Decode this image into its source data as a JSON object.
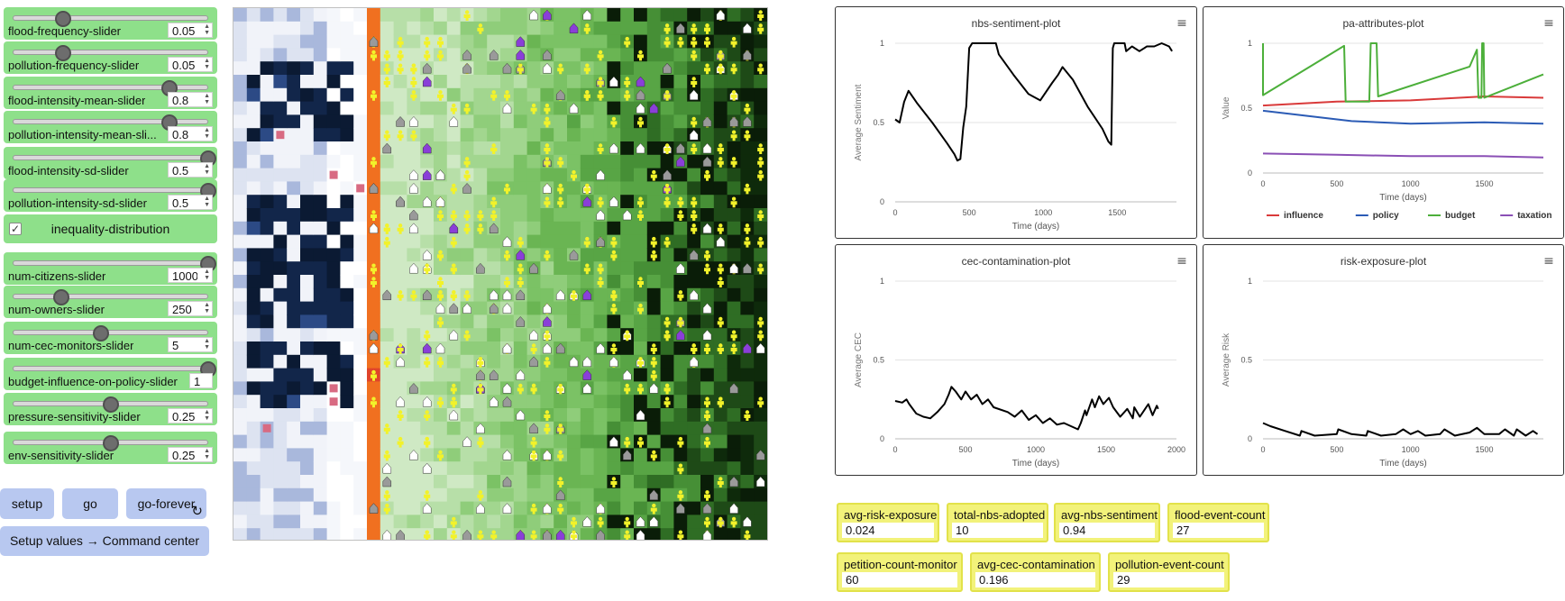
{
  "sliders": [
    {
      "name": "flood-frequency-slider",
      "label": "flood-frequency-slider",
      "value": "0.05",
      "fraction": 0.26
    },
    {
      "name": "pollution-frequency-slider",
      "label": "pollution-frequency-slider",
      "value": "0.05",
      "fraction": 0.26
    },
    {
      "name": "flood-intensity-mean-slider",
      "label": "flood-intensity-mean-slider",
      "value": "0.8",
      "fraction": 0.8
    },
    {
      "name": "pollution-intensity-mean-slider",
      "label": "pollution-intensity-mean-sli...",
      "value": "0.8",
      "fraction": 0.8
    },
    {
      "name": "flood-intensity-sd-slider",
      "label": "flood-intensity-sd-slider",
      "value": "0.5",
      "fraction": 1.0
    },
    {
      "name": "pollution-intensity-sd-slider",
      "label": "pollution-intensity-sd-slider",
      "value": "0.5",
      "fraction": 1.0
    },
    {
      "name": "num-citizens-slider",
      "label": "num-citizens-slider",
      "value": "1000",
      "fraction": 1.0
    },
    {
      "name": "num-owners-slider",
      "label": "num-owners-slider",
      "value": "250",
      "fraction": 0.25
    },
    {
      "name": "num-cec-monitors-slider",
      "label": "num-cec-monitors-slider",
      "value": "5",
      "fraction": 0.45
    },
    {
      "name": "budget-influence-on-policy-slider",
      "label": "budget-influence-on-policy-slider",
      "value": "1",
      "fraction": 1.0
    },
    {
      "name": "pressure-sensitivity-slider",
      "label": "pressure-sensitivity-slider",
      "value": "0.25",
      "fraction": 0.5
    },
    {
      "name": "env-sensitivity-slider",
      "label": "env-sensitivity-slider",
      "value": "0.25",
      "fraction": 0.5
    }
  ],
  "switch": {
    "label": "inequality-distribution",
    "checked": true,
    "check_glyph": "✓"
  },
  "buttons": {
    "setup": "setup",
    "go": "go",
    "go_forever": "go-forever",
    "go_forever_icon": "↻",
    "setup_values": "Setup values → Command center"
  },
  "plots": [
    {
      "name": "nbs-sentiment-plot",
      "title": "nbs-sentiment-plot",
      "menu_icon": "≡",
      "xlabel": "Time (days)",
      "ylabel": "Average Sentiment",
      "xlim": [
        0,
        1900
      ],
      "ylim": [
        0,
        1
      ],
      "xticks": [
        0,
        500,
        1000,
        1500
      ],
      "yticks": [
        0,
        0.5,
        1
      ],
      "series": [
        {
          "color": "#000000",
          "width": 2,
          "points": [
            [
              0,
              0.52
            ],
            [
              30,
              0.5
            ],
            [
              60,
              0.63
            ],
            [
              90,
              0.7
            ],
            [
              150,
              0.62
            ],
            [
              250,
              0.5
            ],
            [
              350,
              0.37
            ],
            [
              400,
              0.3
            ],
            [
              420,
              0.26
            ],
            [
              440,
              0.27
            ],
            [
              460,
              0.47
            ],
            [
              480,
              0.6
            ],
            [
              500,
              0.97
            ],
            [
              520,
              1
            ],
            [
              680,
              1
            ],
            [
              700,
              0.93
            ],
            [
              800,
              0.8
            ],
            [
              900,
              0.68
            ],
            [
              980,
              0.64
            ],
            [
              1060,
              0.75
            ],
            [
              1100,
              0.8
            ],
            [
              1130,
              0.85
            ],
            [
              1200,
              0.77
            ],
            [
              1300,
              0.6
            ],
            [
              1400,
              0.46
            ],
            [
              1440,
              0.38
            ],
            [
              1460,
              0.36
            ],
            [
              1470,
              0.97
            ],
            [
              1480,
              1
            ],
            [
              1550,
              1
            ],
            [
              1560,
              0.95
            ],
            [
              1600,
              0.98
            ],
            [
              1650,
              0.95
            ],
            [
              1700,
              0.98
            ],
            [
              1750,
              0.98
            ],
            [
              1800,
              1
            ],
            [
              1850,
              0.98
            ],
            [
              1870,
              0.95
            ]
          ]
        }
      ]
    },
    {
      "name": "pa-attributes-plot",
      "title": "pa-attributes-plot",
      "menu_icon": "≡",
      "xlabel": "Time (days)",
      "ylabel": "Value",
      "xlim": [
        0,
        1900
      ],
      "ylim": [
        0,
        1
      ],
      "xticks": [
        0,
        500,
        1000,
        1500
      ],
      "yticks": [
        0,
        0.5,
        1
      ],
      "legend": [
        {
          "label": "influence",
          "color": "#d93a3a"
        },
        {
          "label": "policy",
          "color": "#2b5bb5"
        },
        {
          "label": "budget",
          "color": "#4caf3a"
        },
        {
          "label": "taxation",
          "color": "#8a4fb5"
        }
      ],
      "series": [
        {
          "color": "#d93a3a",
          "width": 2,
          "points": [
            [
              0,
              0.52
            ],
            [
              500,
              0.55
            ],
            [
              1000,
              0.56
            ],
            [
              1500,
              0.59
            ],
            [
              1900,
              0.58
            ]
          ]
        },
        {
          "color": "#2b5bb5",
          "width": 2,
          "points": [
            [
              0,
              0.48
            ],
            [
              300,
              0.44
            ],
            [
              600,
              0.4
            ],
            [
              1000,
              0.38
            ],
            [
              1500,
              0.39
            ],
            [
              1900,
              0.38
            ]
          ]
        },
        {
          "color": "#4caf3a",
          "width": 2,
          "points": [
            [
              0,
              1
            ],
            [
              0,
              0.6
            ],
            [
              550,
              0.98
            ],
            [
              560,
              0.55
            ],
            [
              720,
              0.55
            ],
            [
              730,
              1
            ],
            [
              770,
              1
            ],
            [
              780,
              0.59
            ],
            [
              1400,
              0.82
            ],
            [
              1450,
              0.95
            ],
            [
              1460,
              0.58
            ],
            [
              1480,
              0.58
            ],
            [
              1485,
              1
            ],
            [
              1495,
              1
            ],
            [
              1500,
              0.58
            ],
            [
              1900,
              0.76
            ]
          ]
        },
        {
          "color": "#8a4fb5",
          "width": 2,
          "points": [
            [
              0,
              0.15
            ],
            [
              500,
              0.14
            ],
            [
              1000,
              0.13
            ],
            [
              1500,
              0.13
            ],
            [
              1900,
              0.12
            ]
          ]
        }
      ]
    },
    {
      "name": "cec-contamination-plot",
      "title": "cec-contamination-plot",
      "menu_icon": "≡",
      "xlabel": "Time (days)",
      "ylabel": "Average CEC",
      "xlim": [
        0,
        2000
      ],
      "ylim": [
        0,
        1
      ],
      "xticks": [
        0,
        500,
        1000,
        1500,
        2000
      ],
      "yticks": [
        0,
        0.5,
        1
      ],
      "series": [
        {
          "color": "#000000",
          "width": 2,
          "points": [
            [
              0,
              0.24
            ],
            [
              50,
              0.23
            ],
            [
              80,
              0.25
            ],
            [
              100,
              0.22
            ],
            [
              150,
              0.16
            ],
            [
              200,
              0.14
            ],
            [
              250,
              0.13
            ],
            [
              300,
              0.17
            ],
            [
              350,
              0.22
            ],
            [
              380,
              0.28
            ],
            [
              400,
              0.33
            ],
            [
              430,
              0.3
            ],
            [
              470,
              0.25
            ],
            [
              500,
              0.3
            ],
            [
              540,
              0.25
            ],
            [
              580,
              0.28
            ],
            [
              620,
              0.22
            ],
            [
              660,
              0.25
            ],
            [
              700,
              0.2
            ],
            [
              800,
              0.17
            ],
            [
              850,
              0.14
            ],
            [
              900,
              0.18
            ],
            [
              950,
              0.12
            ],
            [
              1000,
              0.15
            ],
            [
              1050,
              0.1
            ],
            [
              1100,
              0.13
            ],
            [
              1150,
              0.09
            ],
            [
              1200,
              0.1
            ],
            [
              1300,
              0.06
            ],
            [
              1320,
              0.1
            ],
            [
              1350,
              0.18
            ],
            [
              1360,
              0.15
            ],
            [
              1400,
              0.25
            ],
            [
              1420,
              0.2
            ],
            [
              1450,
              0.27
            ],
            [
              1480,
              0.22
            ],
            [
              1520,
              0.26
            ],
            [
              1550,
              0.2
            ],
            [
              1600,
              0.14
            ],
            [
              1650,
              0.19
            ],
            [
              1690,
              0.13
            ],
            [
              1700,
              0.2
            ],
            [
              1740,
              0.14
            ],
            [
              1800,
              0.22
            ],
            [
              1830,
              0.15
            ],
            [
              1860,
              0.21
            ],
            [
              1870,
              0.19
            ]
          ]
        }
      ]
    },
    {
      "name": "risk-exposure-plot",
      "title": "risk-exposure-plot",
      "menu_icon": "≡",
      "xlabel": "Time (days)",
      "ylabel": "Average Risk",
      "xlim": [
        0,
        1900
      ],
      "ylim": [
        0,
        1
      ],
      "xticks": [
        0,
        500,
        1000,
        1500
      ],
      "yticks": [
        0,
        0.5,
        1
      ],
      "series": [
        {
          "color": "#000000",
          "width": 2,
          "points": [
            [
              0,
              0.1
            ],
            [
              50,
              0.08
            ],
            [
              150,
              0.05
            ],
            [
              250,
              0.02
            ],
            [
              260,
              0.05
            ],
            [
              350,
              0.02
            ],
            [
              500,
              0.03
            ],
            [
              510,
              0.06
            ],
            [
              600,
              0.03
            ],
            [
              700,
              0.02
            ],
            [
              710,
              0.05
            ],
            [
              800,
              0.02
            ],
            [
              900,
              0.03
            ],
            [
              950,
              0.06
            ],
            [
              1000,
              0.03
            ],
            [
              1050,
              0.05
            ],
            [
              1100,
              0.02
            ],
            [
              1200,
              0.03
            ],
            [
              1230,
              0.06
            ],
            [
              1300,
              0.02
            ],
            [
              1400,
              0.04
            ],
            [
              1450,
              0.07
            ],
            [
              1500,
              0.03
            ],
            [
              1600,
              0.03
            ],
            [
              1640,
              0.06
            ],
            [
              1700,
              0.02
            ],
            [
              1720,
              0.06
            ],
            [
              1780,
              0.02
            ],
            [
              1830,
              0.05
            ],
            [
              1860,
              0.03
            ]
          ]
        }
      ]
    }
  ],
  "monitors": [
    {
      "name": "avg-risk-exposure",
      "label": "avg-risk-exposure",
      "value": "0.024"
    },
    {
      "name": "total-nbs-adopted",
      "label": "total-nbs-adopted",
      "value": "10"
    },
    {
      "name": "avg-nbs-sentiment",
      "label": "avg-nbs-sentiment",
      "value": "0.94"
    },
    {
      "name": "flood-event-count",
      "label": "flood-event-count",
      "value": "27"
    },
    {
      "name": "petition-count-monitor",
      "label": "petition-count-monitor",
      "value": "60"
    },
    {
      "name": "avg-cec-contamination",
      "label": "avg-cec-contamination",
      "value": "0.196"
    },
    {
      "name": "pollution-event-count",
      "label": "pollution-event-count",
      "value": "29"
    }
  ]
}
